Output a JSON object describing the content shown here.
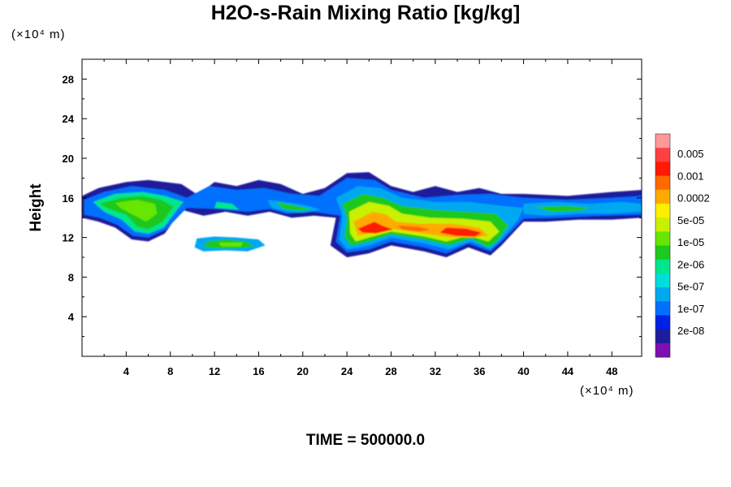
{
  "chart_data": {
    "type": "heatmap",
    "title": "H2O-s-Rain Mixing Ratio [kg/kg]",
    "xlabel": "",
    "ylabel": "Height",
    "x_unit": "(×10⁴ m)",
    "y_unit": "(×10⁴ m)",
    "xlim": [
      0,
      50.7
    ],
    "ylim": [
      0,
      30
    ],
    "x_ticks": [
      4,
      8,
      12,
      16,
      20,
      24,
      28,
      32,
      36,
      40,
      44,
      48
    ],
    "y_ticks": [
      4,
      8,
      12,
      16,
      20,
      24,
      28
    ],
    "footer": "TIME = 500000.0",
    "colorbar": {
      "labels": [
        "0.005",
        "0.001",
        "0.0002",
        "5e-05",
        "1e-05",
        "2e-06",
        "5e-07",
        "1e-07",
        "2e-08"
      ],
      "colors_top_to_bottom": [
        "#ff9999",
        "#ff4040",
        "#ff1a00",
        "#ff6a00",
        "#ffaa00",
        "#ffee00",
        "#c8f000",
        "#66e600",
        "#1ec81e",
        "#00e68c",
        "#00dddd",
        "#00a8f0",
        "#0070ff",
        "#0020e6",
        "#1c1c9c",
        "#7e0fb0"
      ]
    },
    "regions": [
      {
        "level": 1,
        "x": [
          1.8,
          8.0
        ],
        "y": [
          13.4,
          17.2
        ],
        "description": "upper band left"
      },
      {
        "level": 2,
        "x": [
          22.0,
          40.0
        ],
        "y": [
          10.0,
          17.0
        ],
        "description": "upper band core, max ~0.001"
      },
      {
        "level": 3,
        "x": [
          10.5,
          16.5
        ],
        "y": [
          10.6,
          11.6
        ],
        "description": "lower left patch"
      }
    ]
  }
}
